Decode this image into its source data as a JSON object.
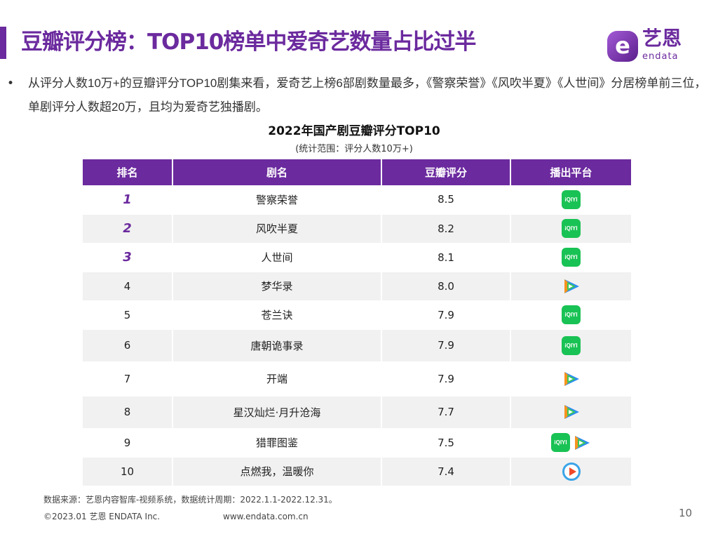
{
  "header": {
    "title": "豆瓣评分榜：TOP10榜单中爱奇艺数量占比过半",
    "logo_cn": "艺恩",
    "logo_en": "endata",
    "logo_mark": "e"
  },
  "summary": {
    "bullet": "•",
    "text": "从评分人数10万+的豆瓣评分TOP10剧集来看，爱奇艺上榜6部剧数量最多，《警察荣誉》《风吹半夏》《人世间》分居榜单前三位，单剧评分人数超20万，且均为爱奇艺独播剧。"
  },
  "table": {
    "title": "2022年国产剧豆瓣评分TOP10",
    "subtitle": "(统计范围：评分人数10万+)",
    "columns": [
      "排名",
      "剧名",
      "豆瓣评分",
      "播出平台"
    ],
    "rows": [
      {
        "rank": "1",
        "name": "警察荣誉",
        "score": "8.5",
        "platforms": [
          "iqiyi"
        ]
      },
      {
        "rank": "2",
        "name": "风吹半夏",
        "score": "8.2",
        "platforms": [
          "iqiyi"
        ]
      },
      {
        "rank": "3",
        "name": "人世间",
        "score": "8.1",
        "platforms": [
          "iqiyi"
        ]
      },
      {
        "rank": "4",
        "name": "梦华录",
        "score": "8.0",
        "platforms": [
          "tencent-video"
        ]
      },
      {
        "rank": "5",
        "name": "苍兰诀",
        "score": "7.9",
        "platforms": [
          "iqiyi"
        ]
      },
      {
        "rank": "6",
        "name": "唐朝诡事录",
        "score": "7.9",
        "platforms": [
          "iqiyi"
        ]
      },
      {
        "rank": "7",
        "name": "开端",
        "score": "7.9",
        "platforms": [
          "tencent-video"
        ]
      },
      {
        "rank": "8",
        "name": "星汉灿烂·月升沧海",
        "score": "7.7",
        "platforms": [
          "tencent-video"
        ]
      },
      {
        "rank": "9",
        "name": "猎罪图鉴",
        "score": "7.5",
        "platforms": [
          "iqiyi",
          "tencent-video"
        ]
      },
      {
        "rank": "10",
        "name": "点燃我，温暖你",
        "score": "7.4",
        "platforms": [
          "youku"
        ]
      }
    ],
    "iqiyi_label": "iQIYI"
  },
  "footer": {
    "source": "数据来源：艺恩内容智库-视频系统，数据统计周期：2022.1.1-2022.12.31。",
    "copyright": "©2023.01 艺恩 ENDATA Inc.",
    "website": "www.endata.com.cn",
    "page": "10"
  },
  "colors": {
    "accent": "#6b2a9e",
    "iqiyi": "#19c254",
    "stripe": "#f1f1f1"
  }
}
